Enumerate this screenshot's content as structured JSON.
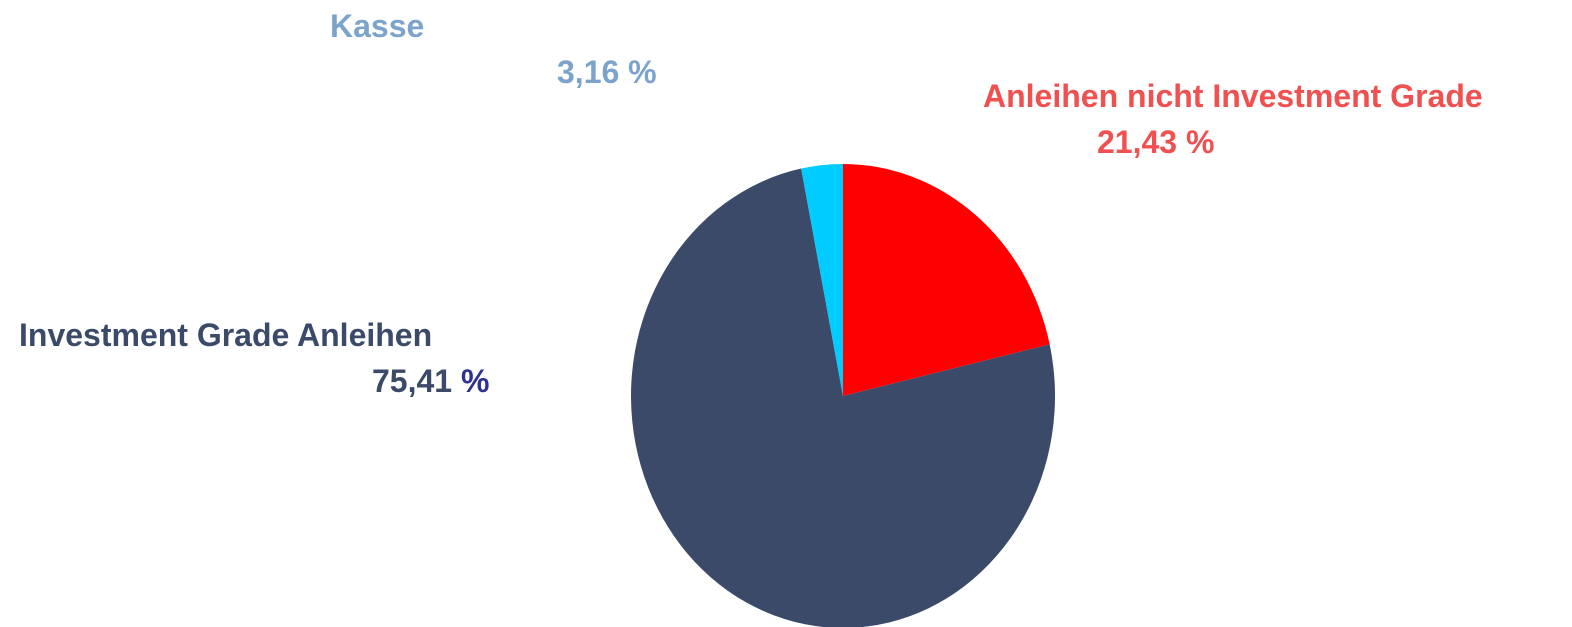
{
  "chart_data": {
    "type": "pie",
    "title": "",
    "slices": [
      {
        "label": "Anleihen nicht Investment Grade",
        "value": 21.43,
        "value_text": "21,43",
        "unit_text": " %",
        "color": "#ff0000",
        "label_color": "#f05050",
        "unit_color": "#f05050"
      },
      {
        "label": "Investment Grade Anleihen",
        "value": 75.41,
        "value_text": "75,41",
        "unit_text": " %",
        "color": "#3a4a68",
        "label_color": "#3a4a68",
        "unit_color": "#2e3191"
      },
      {
        "label": "Kasse",
        "value": 3.16,
        "value_text": "3,16",
        "unit_text": " %",
        "color": "#00ccff",
        "label_color": "#7ba3cc",
        "unit_color": "#7ba3cc"
      }
    ]
  }
}
